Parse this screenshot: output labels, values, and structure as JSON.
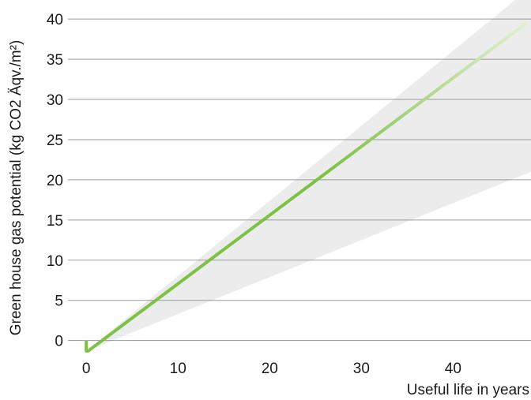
{
  "chart_data": {
    "type": "line",
    "title": "",
    "xlabel": "Useful life in years",
    "ylabel": "Green house gas potential (kg CO2 Äqv./m²)",
    "xlim": [
      -2,
      48.5
    ],
    "ylim": [
      -2,
      41
    ],
    "x_ticks": [
      0,
      10,
      20,
      30,
      40
    ],
    "y_ticks": [
      0,
      5,
      10,
      15,
      20,
      25,
      30,
      35,
      40
    ],
    "grid": "horizontal",
    "colors": {
      "line": "#7dc242",
      "line_fade": "#e0efcf",
      "band": "#ececec",
      "grid": "#9a9a9a"
    },
    "series": [
      {
        "x": [
          0,
          0,
          0.2,
          48
        ],
        "y": [
          0,
          -1.3,
          -1.3,
          39.5
        ]
      }
    ],
    "uncertainty_band": {
      "origin": [
        0,
        -1.3
      ],
      "upper_end": [
        48.5,
        44
      ],
      "lower_end": [
        48.5,
        21
      ]
    }
  }
}
